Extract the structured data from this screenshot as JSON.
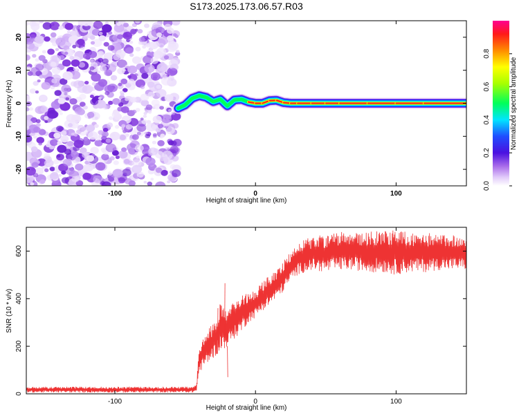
{
  "title": "S173.2025.173.06.57.R03",
  "chart_data": [
    {
      "type": "heatmap",
      "xlabel": "Height of straight line (km)",
      "ylabel": "Frequency (Hz)",
      "xlim": [
        -163,
        150
      ],
      "ylim": [
        -25,
        25
      ],
      "xticks": [
        -100,
        0,
        100
      ],
      "yticks": [
        -20,
        -10,
        0,
        10,
        20
      ],
      "colorbar": {
        "label": "Normalized spectral amplitude",
        "range": [
          0,
          1
        ],
        "ticks": [
          "0.0",
          "0.2",
          "0.4",
          "0.6",
          "0.8"
        ],
        "tick_values": [
          0,
          0.2,
          0.4,
          0.6,
          0.8
        ],
        "colors": [
          "#ffffff",
          "#c9a7f5",
          "#7a1fd6",
          "#1f2cff",
          "#00ffff",
          "#00ff3c",
          "#ffff00",
          "#ff9a00",
          "#ff1a1a",
          "#ff0090"
        ]
      },
      "noise_region_x": [
        -163,
        -55
      ],
      "ridge_trace": {
        "x": [
          -55,
          -50,
          -45,
          -40,
          -35,
          -30,
          -25,
          -20,
          -15,
          -10,
          -5,
          0,
          5,
          10,
          15,
          20,
          25,
          30,
          40,
          50,
          60,
          80,
          100,
          120,
          150
        ],
        "frequency": [
          -1.5,
          -0.5,
          1.5,
          2.3,
          1.8,
          0.5,
          1.2,
          -0.8,
          1.0,
          1.2,
          0.4,
          0.0,
          0.0,
          0.8,
          0.9,
          0.2,
          0.0,
          0.0,
          0.0,
          0.0,
          0.0,
          0.0,
          0.0,
          0.0,
          0.0
        ],
        "amplitude": [
          0.3,
          0.4,
          0.45,
          0.5,
          0.45,
          0.6,
          0.5,
          0.4,
          0.45,
          0.5,
          0.55,
          0.9,
          0.9,
          0.9,
          0.9,
          0.7,
          0.75,
          0.9,
          0.85,
          0.9,
          0.95,
          0.95,
          0.95,
          0.95,
          0.95
        ]
      }
    },
    {
      "type": "line",
      "xlabel": "Height of straight line (km)",
      "ylabel": "SNR (10 * v/v)",
      "xlim": [
        -163,
        150
      ],
      "ylim": [
        0,
        700
      ],
      "xticks": [
        -100,
        0,
        100
      ],
      "yticks": [
        0,
        200,
        400,
        600
      ],
      "color": "#ee3333",
      "envelope": {
        "x": [
          -163,
          -50,
          -45,
          -42,
          -40,
          -35,
          -30,
          -25,
          -20,
          -15,
          -10,
          -5,
          0,
          5,
          10,
          15,
          20,
          25,
          30,
          40,
          50,
          60,
          70,
          80,
          90,
          100,
          110,
          120,
          130,
          140,
          150
        ],
        "low": [
          5,
          5,
          5,
          10,
          90,
          120,
          150,
          180,
          200,
          230,
          260,
          300,
          320,
          350,
          370,
          400,
          430,
          470,
          500,
          520,
          510,
          520,
          520,
          510,
          510,
          500,
          510,
          510,
          520,
          520,
          520
        ],
        "high": [
          30,
          30,
          30,
          40,
          200,
          260,
          300,
          380,
          360,
          390,
          420,
          430,
          440,
          470,
          500,
          520,
          560,
          600,
          640,
          660,
          670,
          680,
          680,
          680,
          690,
          690,
          680,
          680,
          670,
          670,
          670
        ]
      },
      "spikes": [
        {
          "x": -22,
          "y": 465
        },
        {
          "x": -27,
          "y": 360
        },
        {
          "x": -20,
          "y": 70
        }
      ]
    }
  ]
}
